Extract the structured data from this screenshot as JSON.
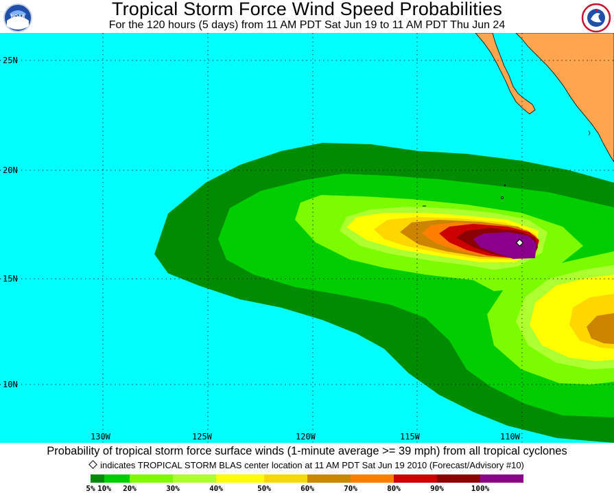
{
  "header": {
    "title": "Tropical Storm Force Wind Speed Probabilities",
    "subtitle": "For the 120 hours (5 days) from 11 AM PDT Sat Jun 19 to 11 AM PDT Thu Jun 24",
    "logo_left": "noaa-logo",
    "logo_right": "nws-logo"
  },
  "map": {
    "ocean_color": "#00ffff",
    "land_color": "#ffa54f",
    "lon_ticks": [
      "130W",
      "125W",
      "120W",
      "115W",
      "110W"
    ],
    "lat_ticks": [
      "25N",
      "20N",
      "15N",
      "10N"
    ],
    "storm_center_marker": "diamond-icon"
  },
  "caption": {
    "main": "Probability of tropical storm force surface winds (1-minute average >= 39 mph) from all tropical cyclones",
    "center_note": "indicates TROPICAL STORM BLAS center location at 11 AM PDT Sat Jun 19 2010 (Forecast/Advisory #10)"
  },
  "legend": {
    "colors": [
      "#008b00",
      "#00cd00",
      "#7cfc00",
      "#adff2f",
      "#ffff00",
      "#ffd700",
      "#cd8500",
      "#ff7f00",
      "#cd0000",
      "#8b0000",
      "#8b008b"
    ],
    "labels": [
      "5%",
      "10%",
      "20%",
      "30%",
      "40%",
      "50%",
      "60%",
      "70%",
      "80%",
      "90%",
      "100%"
    ]
  }
}
